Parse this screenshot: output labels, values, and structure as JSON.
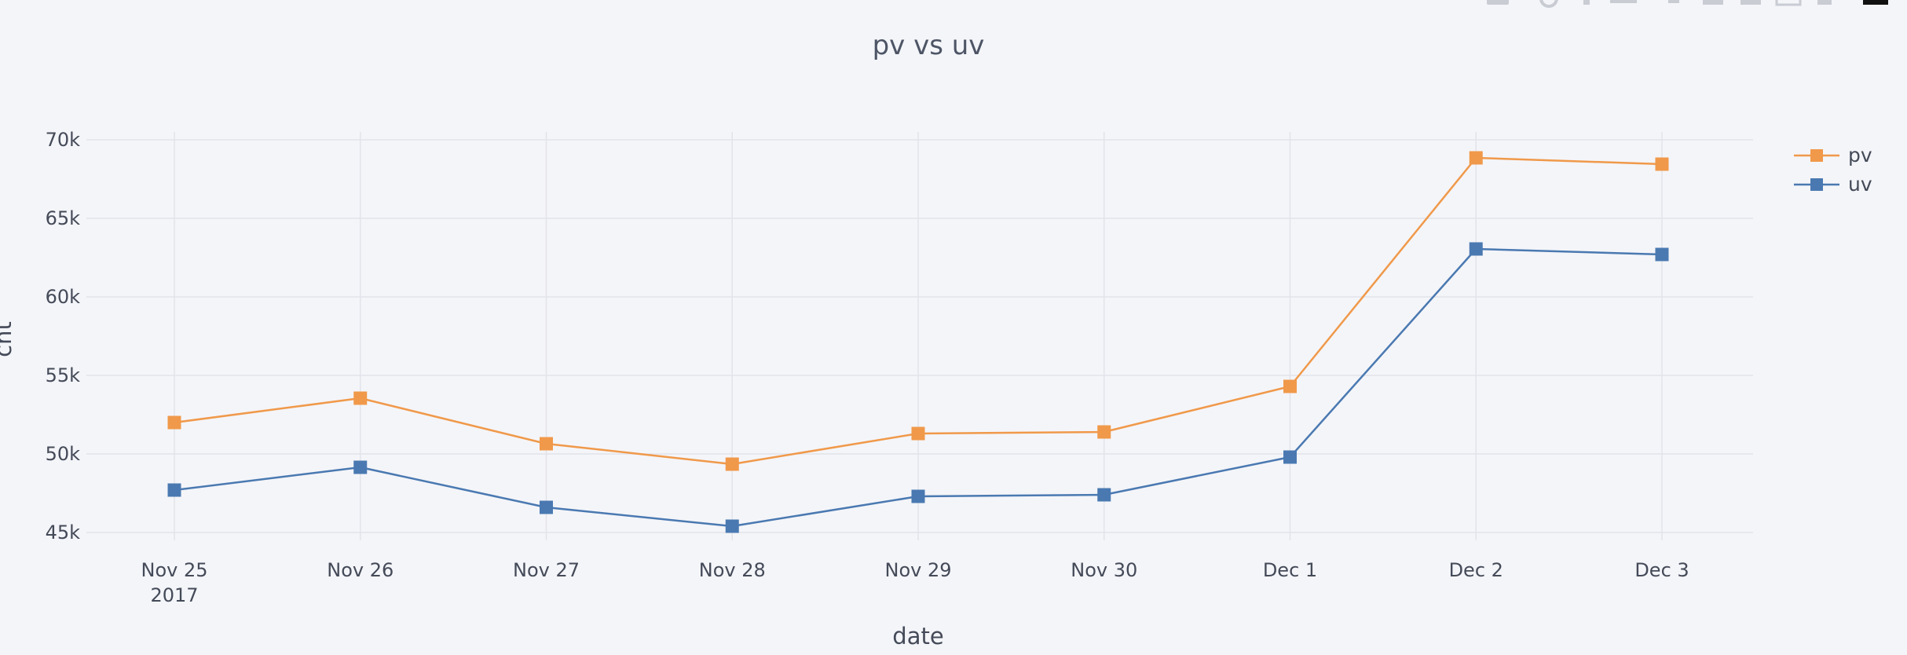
{
  "chart_data": {
    "type": "line",
    "title": "pv vs uv",
    "xlabel": "date",
    "ylabel": "cnt",
    "categories": [
      "Nov 25",
      "Nov 26",
      "Nov 27",
      "Nov 28",
      "Nov 29",
      "Nov 30",
      "Dec 1",
      "Dec 2",
      "Dec 3"
    ],
    "x_year_label": "2017",
    "ylim": [
      44500,
      70500
    ],
    "y_ticks": [
      45000,
      50000,
      55000,
      60000,
      65000,
      70000
    ],
    "y_tick_labels": [
      "45k",
      "50k",
      "55k",
      "60k",
      "65k",
      "70k"
    ],
    "grid": true,
    "legend_position": "top-right",
    "marker": "square",
    "series": [
      {
        "name": "pv",
        "color": "#f0994a",
        "values": [
          52000,
          53550,
          50650,
          49350,
          51300,
          51400,
          54300,
          68850,
          68450
        ]
      },
      {
        "name": "uv",
        "color": "#4a79b1",
        "values": [
          47700,
          49150,
          46600,
          45400,
          47300,
          47400,
          49800,
          63050,
          62700
        ]
      }
    ]
  }
}
